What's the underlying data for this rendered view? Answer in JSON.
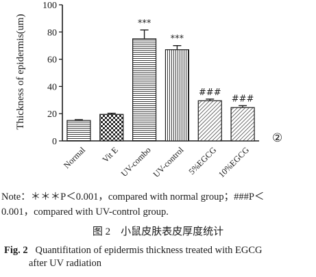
{
  "chart_data": {
    "type": "bar",
    "ylabel": "Thickness of epidermis(um)",
    "xlabel": "",
    "ylim": [
      0,
      100
    ],
    "yticks": [
      0,
      20,
      40,
      60,
      80,
      100
    ],
    "categories": [
      "Normal",
      "Vit E",
      "UV-combo",
      "UV-control",
      "5%EGCG",
      "10%EGCG"
    ],
    "values": [
      15,
      19.5,
      75,
      67,
      29.5,
      24.5
    ],
    "errors": [
      0.6,
      0.8,
      6.5,
      3,
      1.2,
      1.4
    ],
    "patterns": [
      "horizontal-lines",
      "checkerboard",
      "horizontal-lines",
      "vertical-lines",
      "diagonal-lines",
      "diagonal-lines"
    ],
    "annotations": [
      "",
      "",
      "***",
      "***",
      "###",
      "###"
    ],
    "panel_marker": "②",
    "grid": false,
    "legend": "none"
  },
  "note": {
    "line1": "Note：＊＊＊P＜0.001，compared with normal group；###P＜",
    "line2": "0.001，compared with UV-control group."
  },
  "figure": {
    "caption_cn": "图 2　小鼠皮肤表皮厚度统计",
    "label_en": "Fig. 2",
    "caption_en_1": "Quantifitation of epidermis thickness treated with EGCG",
    "caption_en_2": "after UV radiation"
  }
}
